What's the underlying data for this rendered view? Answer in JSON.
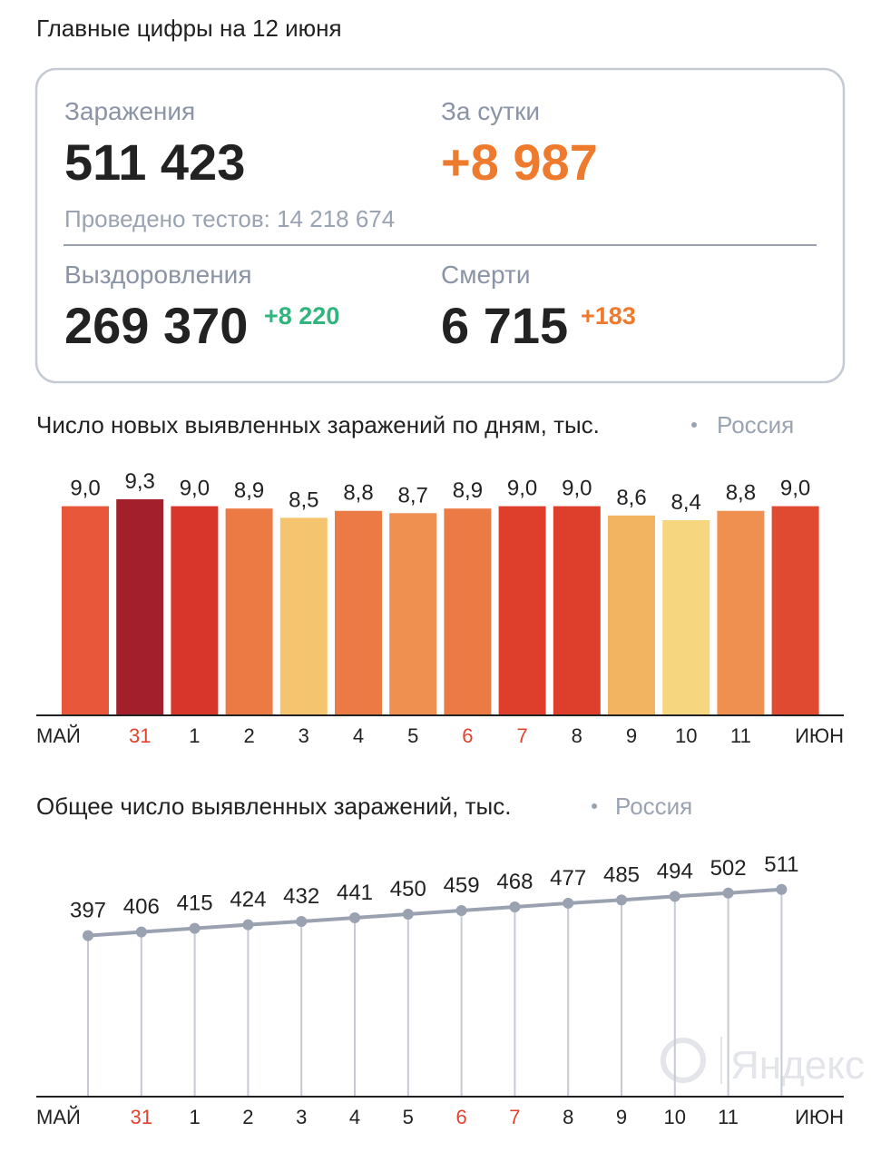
{
  "header": {
    "title": "Главные цифры на 12 июня"
  },
  "card": {
    "infections": {
      "label": "Заражения",
      "value": "511 423"
    },
    "daily": {
      "label": "За сутки",
      "value": "+8 987"
    },
    "tests": "Проведено тестов: 14 218 674",
    "recoveries": {
      "label": "Выздоровления",
      "value": "269 370",
      "delta": "+8 220"
    },
    "deaths": {
      "label": "Смерти",
      "value": "6 715",
      "delta": "+183"
    }
  },
  "watermark": "Яндекс",
  "chart_data": [
    {
      "type": "bar",
      "title": "Число новых выявленных заражений по дням, тыс.",
      "subtitle": "Россия",
      "categories": [
        "МАЙ",
        "31",
        "1",
        "2",
        "3",
        "4",
        "5",
        "6",
        "7",
        "8",
        "9",
        "10",
        "11",
        "ИЮН"
      ],
      "category_colors": [
        "#222222",
        "#e0432f",
        "#222222",
        "#222222",
        "#222222",
        "#222222",
        "#222222",
        "#e0432f",
        "#e0432f",
        "#222222",
        "#222222",
        "#222222",
        "#222222",
        "#222222"
      ],
      "values": [
        9.0,
        9.3,
        9.0,
        8.9,
        8.5,
        8.8,
        8.7,
        8.9,
        9.0,
        9.0,
        8.6,
        8.4,
        8.8,
        9.0
      ],
      "value_labels": [
        "9,0",
        "9,3",
        "9,0",
        "8,9",
        "8,5",
        "8,8",
        "8,7",
        "8,9",
        "9,0",
        "9,0",
        "8,6",
        "8,4",
        "8,8",
        "9,0"
      ],
      "colors": [
        "#e8573a",
        "#a31f2c",
        "#d8352b",
        "#ec7a45",
        "#f4c56e",
        "#ec7a45",
        "#ef9050",
        "#ec7a45",
        "#dd3f2c",
        "#dd3f2c",
        "#f2b460",
        "#f6d780",
        "#ef9050",
        "#e04a30"
      ],
      "ylim": [
        0,
        10
      ]
    },
    {
      "type": "line",
      "title": "Общее число выявленных заражений, тыс.",
      "subtitle": "Россия",
      "categories": [
        "МАЙ",
        "31",
        "1",
        "2",
        "3",
        "4",
        "5",
        "6",
        "7",
        "8",
        "9",
        "10",
        "11",
        "ИЮН"
      ],
      "category_colors": [
        "#222222",
        "#e0432f",
        "#222222",
        "#222222",
        "#222222",
        "#222222",
        "#222222",
        "#e0432f",
        "#e0432f",
        "#222222",
        "#222222",
        "#222222",
        "#222222",
        "#222222"
      ],
      "values": [
        397,
        406,
        415,
        424,
        432,
        441,
        450,
        459,
        468,
        477,
        485,
        494,
        502,
        511
      ],
      "color": "#9aa1b0",
      "ylim": [
        0,
        600
      ]
    }
  ]
}
